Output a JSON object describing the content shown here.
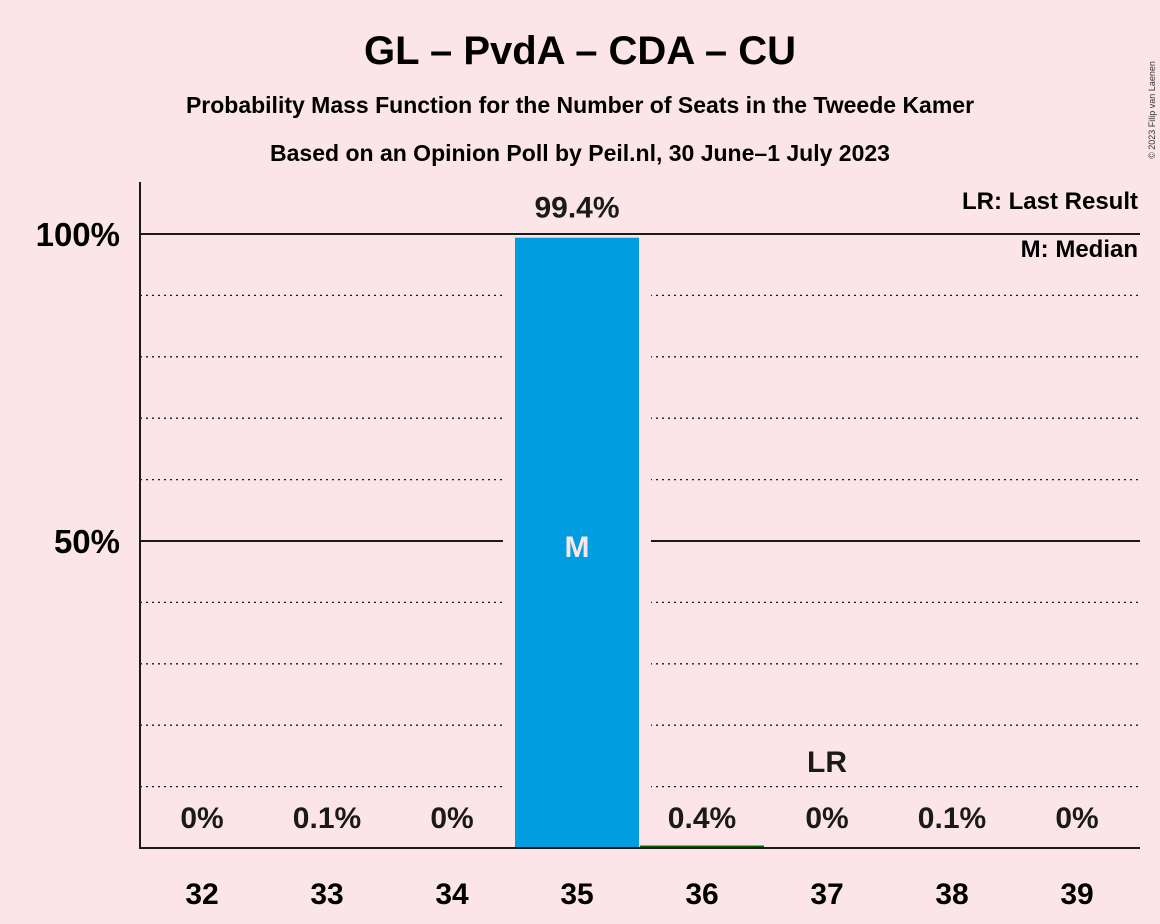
{
  "chart_data": {
    "type": "bar",
    "title": "GL – PvdA – CDA – CU",
    "subtitle": "Probability Mass Function for the Number of Seats in the Tweede Kamer",
    "subtitle2": "Based on an Opinion Poll by Peil.nl, 30 June–1 July 2023",
    "copyright": "© 2023 Filip van Laenen",
    "categories": [
      "32",
      "33",
      "34",
      "35",
      "36",
      "37",
      "38",
      "39"
    ],
    "values": [
      0,
      0.1,
      0,
      99.4,
      0.4,
      0,
      0.1,
      0
    ],
    "value_labels": [
      "0%",
      "0.1%",
      "0%",
      "99.4%",
      "0.4%",
      "0%",
      "0.1%",
      "0%"
    ],
    "ylim": [
      0,
      110
    ],
    "yticks": [
      {
        "value": 50,
        "label": "50%"
      },
      {
        "value": 100,
        "label": "100%"
      }
    ],
    "minor_grid": [
      10,
      20,
      30,
      40,
      60,
      70,
      80,
      90
    ],
    "median_category": "35",
    "median_marker": "M",
    "last_result_category": "37",
    "last_result_marker": "LR",
    "legend": [
      "LR: Last Result",
      "M: Median"
    ],
    "legend_position": "top-right",
    "colors": {
      "background": "#fbe5e8",
      "bar": "#009ee0",
      "bar_small": "#006400",
      "text": "#1a1a1a",
      "median_text": "#fbe5e8"
    }
  }
}
